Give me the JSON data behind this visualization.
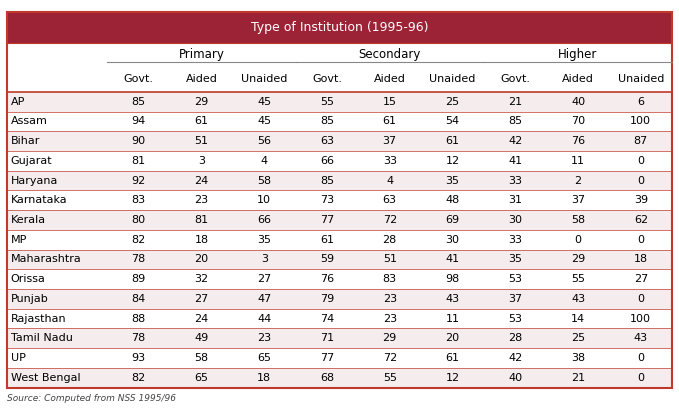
{
  "title": "Type of Institution (1995-96)",
  "footnote": "Source: Computed from NSS 1995/96",
  "header_bg": "#9b2335",
  "header_text_color": "#ffffff",
  "border_color": "#c0392b",
  "col_groups": [
    "Primary",
    "Secondary",
    "Higher"
  ],
  "col_subheaders": [
    "Govt.",
    "Aided",
    "Unaided"
  ],
  "states": [
    "AP",
    "Assam",
    "Bihar",
    "Gujarat",
    "Haryana",
    "Karnataka",
    "Kerala",
    "MP",
    "Maharashtra",
    "Orissa",
    "Punjab",
    "Rajasthan",
    "Tamil Nadu",
    "UP",
    "West Bengal"
  ],
  "data": [
    [
      85,
      29,
      45,
      55,
      15,
      25,
      21,
      40,
      6
    ],
    [
      94,
      61,
      45,
      85,
      61,
      54,
      85,
      70,
      100
    ],
    [
      90,
      51,
      56,
      63,
      37,
      61,
      42,
      76,
      87
    ],
    [
      81,
      3,
      4,
      66,
      33,
      12,
      41,
      11,
      0
    ],
    [
      92,
      24,
      58,
      85,
      4,
      35,
      33,
      2,
      0
    ],
    [
      83,
      23,
      10,
      73,
      63,
      48,
      31,
      37,
      39
    ],
    [
      80,
      81,
      66,
      77,
      72,
      69,
      30,
      58,
      62
    ],
    [
      82,
      18,
      35,
      61,
      28,
      30,
      33,
      0,
      0
    ],
    [
      78,
      20,
      3,
      59,
      51,
      41,
      35,
      29,
      18
    ],
    [
      89,
      32,
      27,
      76,
      83,
      98,
      53,
      55,
      27
    ],
    [
      84,
      27,
      47,
      79,
      23,
      43,
      37,
      43,
      0
    ],
    [
      88,
      24,
      44,
      74,
      23,
      11,
      53,
      14,
      100
    ],
    [
      78,
      49,
      23,
      71,
      29,
      20,
      28,
      25,
      43
    ],
    [
      93,
      58,
      65,
      77,
      72,
      61,
      42,
      38,
      0
    ],
    [
      82,
      65,
      18,
      68,
      55,
      12,
      40,
      21,
      0
    ]
  ]
}
